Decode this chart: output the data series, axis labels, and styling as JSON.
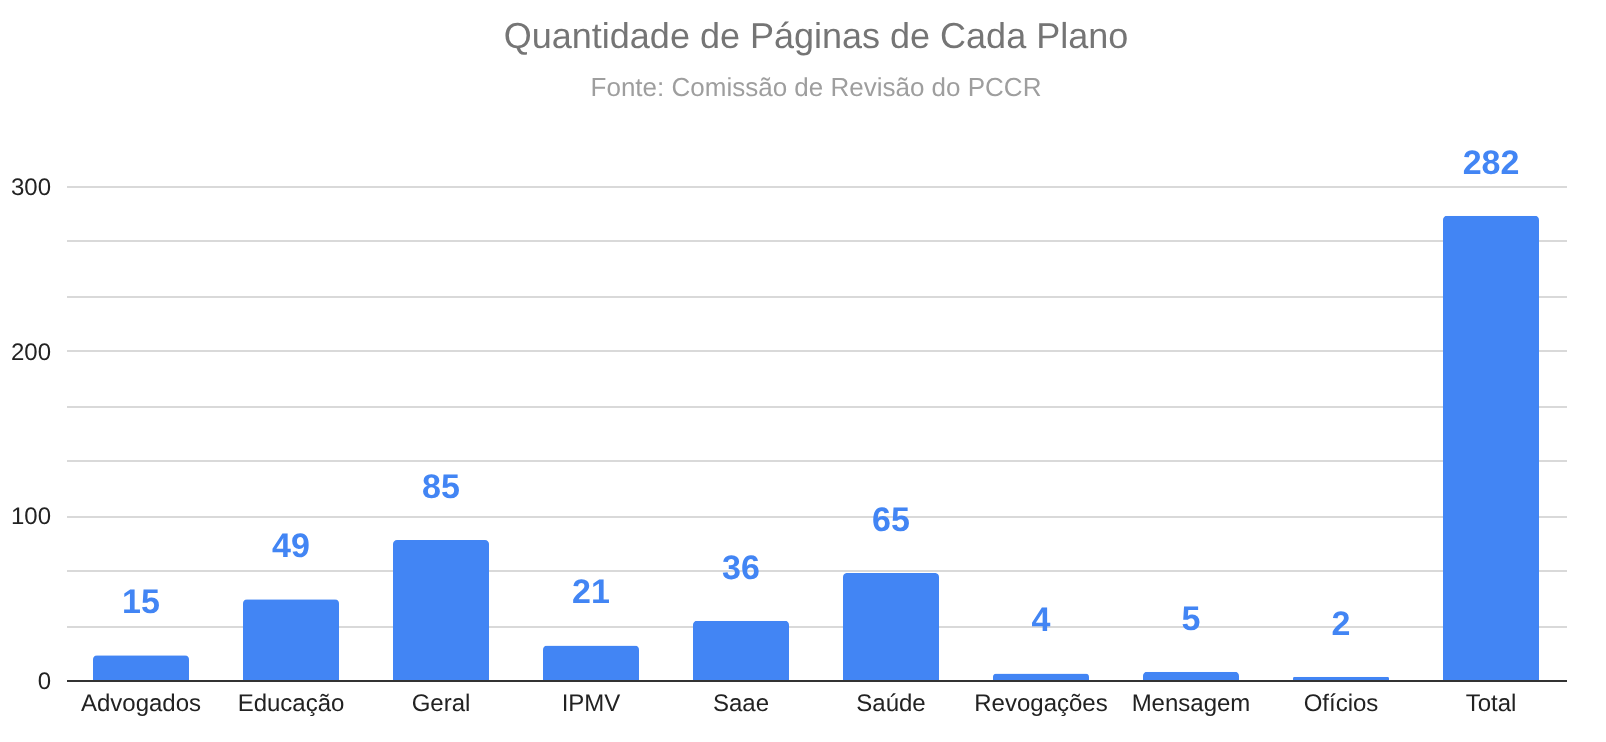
{
  "chart_data": {
    "type": "bar",
    "title": "Quantidade de Páginas de Cada Plano",
    "subtitle": "Fonte: Comissão de Revisão do PCCR",
    "categories": [
      "Advogados",
      "Educação",
      "Geral",
      "IPMV",
      "Saae",
      "Saúde",
      "Revogações",
      "Mensagem",
      "Ofícios",
      "Total"
    ],
    "values": [
      15,
      49,
      85,
      21,
      36,
      65,
      4,
      5,
      2,
      282
    ],
    "color": "#4285f4",
    "data_labels": true,
    "grid": true,
    "ylim": [
      0,
      300
    ],
    "yticks": [
      0,
      {
        "value": 33.33,
        "label": null
      },
      {
        "value": 66.67,
        "label": null
      },
      100,
      {
        "value": 133.33,
        "label": null
      },
      {
        "value": 166.67,
        "label": null
      },
      200,
      {
        "value": 233.33,
        "label": null
      },
      {
        "value": 266.67,
        "label": null
      },
      300
    ]
  }
}
